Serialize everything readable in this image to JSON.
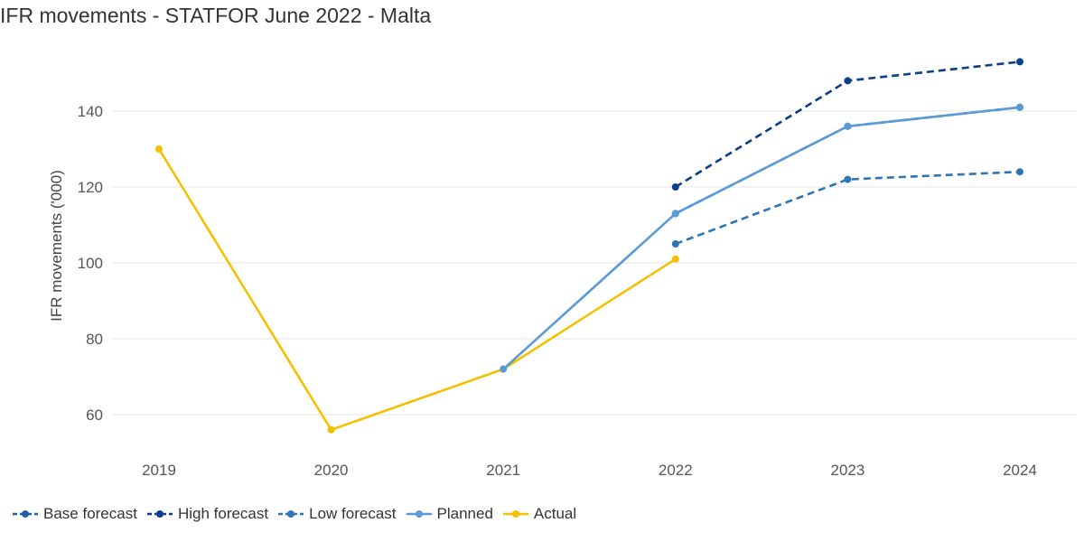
{
  "title": "IFR movements - STATFOR June 2022 - Malta",
  "chart_data": {
    "type": "line",
    "title": "IFR movements - STATFOR June 2022 - Malta",
    "xlabel": "",
    "ylabel": "IFR movements ('000)",
    "categories": [
      "2019",
      "2020",
      "2021",
      "2022",
      "2023",
      "2024"
    ],
    "y_ticks": [
      60,
      80,
      100,
      120,
      140
    ],
    "ylim": [
      50,
      155
    ],
    "grid": true,
    "legend_position": "bottom-left",
    "series": [
      {
        "name": "Base forecast",
        "color": "#1f5fa6",
        "style": "dashed",
        "values": [
          null,
          null,
          null,
          113,
          136,
          141
        ]
      },
      {
        "name": "High forecast",
        "color": "#0a3e8c",
        "style": "dashed",
        "values": [
          null,
          null,
          null,
          120,
          148,
          153
        ]
      },
      {
        "name": "Low forecast",
        "color": "#2e75b6",
        "style": "dashed",
        "values": [
          null,
          null,
          null,
          105,
          122,
          124
        ]
      },
      {
        "name": "Planned",
        "color": "#5b9bd5",
        "style": "solid",
        "values": [
          null,
          null,
          72,
          113,
          136,
          141
        ]
      },
      {
        "name": "Actual",
        "color": "#f5c000",
        "style": "solid",
        "values": [
          130,
          56,
          72,
          101,
          null,
          null
        ]
      }
    ]
  }
}
